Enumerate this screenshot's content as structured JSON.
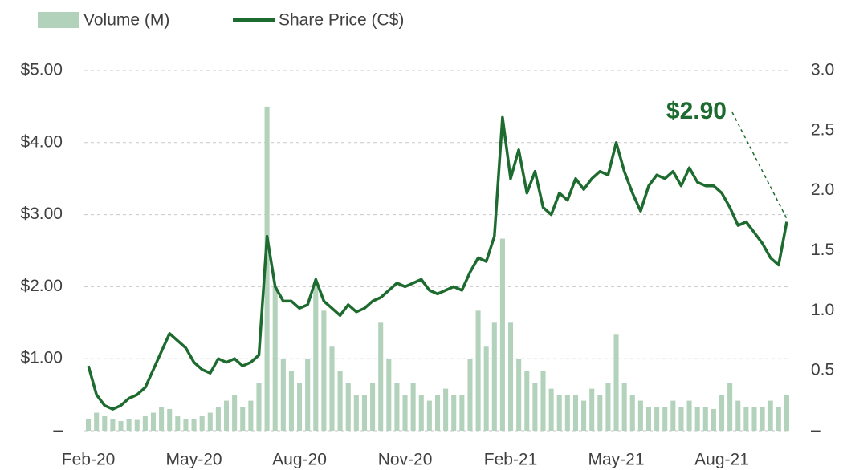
{
  "chart_data": {
    "type": "bar-line",
    "categories": [
      "Feb-20",
      null,
      null,
      null,
      null,
      null,
      null,
      null,
      null,
      null,
      null,
      null,
      null,
      "May-20",
      null,
      null,
      null,
      null,
      null,
      null,
      null,
      null,
      null,
      null,
      null,
      null,
      "Aug-20",
      null,
      null,
      null,
      null,
      null,
      null,
      null,
      null,
      null,
      null,
      null,
      null,
      "Nov-20",
      null,
      null,
      null,
      null,
      null,
      null,
      null,
      null,
      null,
      null,
      null,
      null,
      "Feb-21",
      null,
      null,
      null,
      null,
      null,
      null,
      null,
      null,
      null,
      null,
      null,
      null,
      "May-21",
      null,
      null,
      null,
      null,
      null,
      null,
      null,
      null,
      null,
      null,
      null,
      null,
      "Aug-21",
      null,
      null,
      null,
      null,
      null,
      null,
      null,
      null
    ],
    "series": [
      {
        "name": "Volume (M)",
        "type": "bar",
        "axis": "y2",
        "color": "#b3d2bb",
        "values": [
          0.1,
          0.15,
          0.12,
          0.1,
          0.08,
          0.1,
          0.09,
          0.12,
          0.15,
          0.2,
          0.18,
          0.12,
          0.1,
          0.1,
          0.12,
          0.15,
          0.2,
          0.25,
          0.3,
          0.2,
          0.25,
          0.4,
          2.7,
          1.2,
          0.6,
          0.5,
          0.4,
          0.6,
          1.2,
          1.0,
          0.7,
          0.5,
          0.4,
          0.3,
          0.3,
          0.4,
          0.9,
          0.6,
          0.4,
          0.3,
          0.4,
          0.3,
          0.25,
          0.3,
          0.35,
          0.3,
          0.3,
          0.6,
          1.0,
          0.7,
          0.9,
          1.6,
          0.9,
          0.6,
          0.5,
          0.4,
          0.5,
          0.35,
          0.3,
          0.3,
          0.3,
          0.25,
          0.35,
          0.3,
          0.4,
          0.8,
          0.4,
          0.3,
          0.25,
          0.2,
          0.2,
          0.2,
          0.25,
          0.2,
          0.25,
          0.2,
          0.2,
          0.18,
          0.3,
          0.4,
          0.25,
          0.2,
          0.2,
          0.2,
          0.25,
          0.2,
          0.3
        ]
      },
      {
        "name": "Share Price (C$)",
        "type": "line",
        "color": "#1d6b2f",
        "values": [
          0.9,
          0.5,
          0.35,
          0.3,
          0.35,
          0.45,
          0.5,
          0.6,
          0.85,
          1.1,
          1.35,
          1.25,
          1.15,
          0.95,
          0.85,
          0.8,
          1.0,
          0.95,
          1.0,
          0.9,
          0.95,
          1.05,
          2.7,
          2.0,
          1.8,
          1.8,
          1.7,
          1.75,
          2.1,
          1.8,
          1.7,
          1.6,
          1.75,
          1.65,
          1.7,
          1.8,
          1.85,
          1.95,
          2.05,
          2.0,
          2.05,
          2.1,
          1.95,
          1.9,
          1.95,
          2.0,
          1.95,
          2.2,
          2.4,
          2.35,
          2.7,
          4.35,
          3.5,
          3.9,
          3.3,
          3.6,
          3.1,
          3.0,
          3.3,
          3.2,
          3.5,
          3.35,
          3.5,
          3.6,
          3.55,
          4.0,
          3.6,
          3.3,
          3.05,
          3.4,
          3.55,
          3.5,
          3.6,
          3.4,
          3.65,
          3.45,
          3.4,
          3.4,
          3.3,
          3.1,
          2.85,
          2.9,
          2.75,
          2.6,
          2.4,
          2.3,
          2.9
        ],
        "value_labels": [
          null,
          null,
          null,
          null,
          null,
          null,
          null,
          null,
          null,
          null,
          null,
          null,
          null,
          null,
          null,
          null,
          null,
          null,
          null,
          null,
          null,
          null,
          null,
          null,
          null,
          null,
          null,
          null,
          null,
          null,
          null,
          null,
          null,
          null,
          null,
          null,
          null,
          null,
          null,
          null,
          null,
          null,
          null,
          null,
          null,
          null,
          null,
          null,
          null,
          null,
          null,
          null,
          null,
          null,
          null,
          null,
          null,
          null,
          null,
          null,
          null,
          null,
          null,
          null,
          null,
          null,
          null,
          null,
          null,
          null,
          null,
          null,
          null,
          null,
          null,
          null,
          null,
          null,
          null,
          null,
          null,
          null,
          null,
          null,
          null,
          null,
          "$2.90"
        ]
      }
    ],
    "ylim": [
      0,
      5
    ],
    "yticks": [
      {
        "value": 0,
        "label": "–"
      },
      {
        "value": 1,
        "label": "$1.00"
      },
      {
        "value": 2,
        "label": "$2.00"
      },
      {
        "value": 3,
        "label": "$3.00"
      },
      {
        "value": 4,
        "label": "$4.00"
      },
      {
        "value": 5,
        "label": "$5.00"
      }
    ],
    "y2lim": [
      0,
      3
    ],
    "y2ticks": [
      {
        "value": 0,
        "label": "–"
      },
      0.5,
      {
        "value": 1,
        "label": "1.0"
      },
      1.5,
      {
        "value": 2,
        "label": "2.0"
      },
      2.5,
      {
        "value": 3,
        "label": "3.0"
      }
    ],
    "grid": true,
    "legend": "top"
  }
}
